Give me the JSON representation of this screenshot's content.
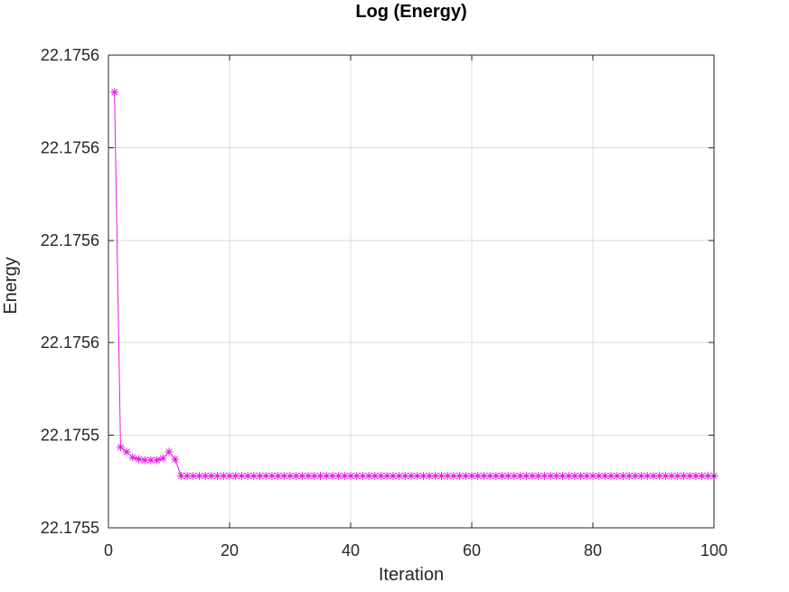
{
  "chart_data": {
    "type": "line",
    "title": "Log (Energy)",
    "xlabel": "Iteration",
    "ylabel": "Energy",
    "xlim": [
      0,
      100
    ],
    "ylim": [
      22.175531,
      22.175582
    ],
    "x_ticks": [
      0,
      20,
      40,
      60,
      80,
      100
    ],
    "x_tick_labels": [
      "0",
      "20",
      "40",
      "60",
      "80",
      "100"
    ],
    "y_ticks": [
      22.175531,
      22.175541,
      22.175551,
      22.175562,
      22.175572,
      22.175582
    ],
    "y_tick_labels": [
      "22.1755",
      "22.1755",
      "22.1756",
      "22.1756",
      "22.1756",
      "22.1756"
    ],
    "grid": true,
    "marker": "asterisk",
    "color": "#e619e6",
    "series": [
      {
        "x": [
          1,
          2,
          3,
          4,
          5,
          6,
          7,
          8,
          9,
          10,
          11,
          12,
          13,
          14,
          15,
          16,
          17,
          18,
          19,
          20,
          21,
          22,
          23,
          24,
          25,
          26,
          27,
          28,
          29,
          30,
          31,
          32,
          33,
          34,
          35,
          36,
          37,
          38,
          39,
          40,
          41,
          42,
          43,
          44,
          45,
          46,
          47,
          48,
          49,
          50,
          51,
          52,
          53,
          54,
          55,
          56,
          57,
          58,
          59,
          60,
          61,
          62,
          63,
          64,
          65,
          66,
          67,
          68,
          69,
          70,
          71,
          72,
          73,
          74,
          75,
          76,
          77,
          78,
          79,
          80,
          81,
          82,
          83,
          84,
          85,
          86,
          87,
          88,
          89,
          90,
          91,
          92,
          93,
          94,
          95,
          96,
          97,
          98,
          99,
          100
        ],
        "y": [
          22.175578,
          22.1755397,
          22.1755392,
          22.1755386,
          22.1755384,
          22.1755383,
          22.1755383,
          22.1755383,
          22.1755385,
          22.1755392,
          22.1755384,
          22.1755366,
          22.1755366,
          22.1755366,
          22.1755366,
          22.1755366,
          22.1755366,
          22.1755366,
          22.1755366,
          22.1755366,
          22.1755366,
          22.1755366,
          22.1755366,
          22.1755366,
          22.1755366,
          22.1755366,
          22.1755366,
          22.1755366,
          22.1755366,
          22.1755366,
          22.1755366,
          22.1755366,
          22.1755366,
          22.1755366,
          22.1755366,
          22.1755366,
          22.1755366,
          22.1755366,
          22.1755366,
          22.1755366,
          22.1755366,
          22.1755366,
          22.1755366,
          22.1755366,
          22.1755366,
          22.1755366,
          22.1755366,
          22.1755366,
          22.1755366,
          22.1755366,
          22.1755366,
          22.1755366,
          22.1755366,
          22.1755366,
          22.1755366,
          22.1755366,
          22.1755366,
          22.1755366,
          22.1755366,
          22.1755366,
          22.1755366,
          22.1755366,
          22.1755366,
          22.1755366,
          22.1755366,
          22.1755366,
          22.1755366,
          22.1755366,
          22.1755366,
          22.1755366,
          22.1755366,
          22.1755366,
          22.1755366,
          22.1755366,
          22.1755366,
          22.1755366,
          22.1755366,
          22.1755366,
          22.1755366,
          22.1755366,
          22.1755366,
          22.1755366,
          22.1755366,
          22.1755366,
          22.1755366,
          22.1755366,
          22.1755366,
          22.1755366,
          22.1755366,
          22.1755366,
          22.1755366,
          22.1755366,
          22.1755366,
          22.1755366,
          22.1755366,
          22.1755366,
          22.1755366,
          22.1755366,
          22.1755366,
          22.1755366
        ]
      }
    ]
  }
}
